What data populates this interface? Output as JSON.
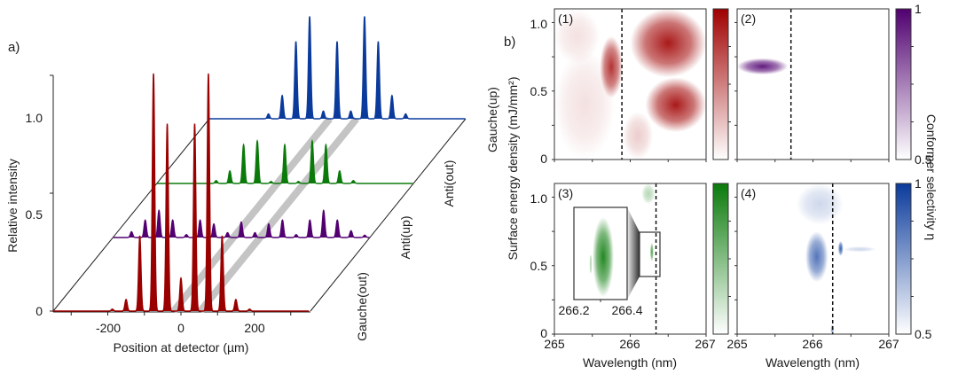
{
  "figure": {
    "panel_a_label": "a)",
    "panel_b_label": "b)"
  },
  "chart_data": [
    {
      "type": "line",
      "id": "a",
      "title": "",
      "xlabel": "Position at detector (µm)",
      "ylabel": "Relative intensity",
      "xlim": [
        -350,
        350
      ],
      "xticks": [
        -300,
        -200,
        -100,
        0,
        100,
        200,
        300
      ],
      "xtick_labels": [
        "-200",
        "0",
        "200"
      ],
      "xtick_label_values": [
        -200,
        0,
        200
      ],
      "ylim": [
        0,
        1.22
      ],
      "ytick_labels": [
        "0",
        "0.5",
        "1.0"
      ],
      "grid": false,
      "depth_axis_labels": [
        "Gauche(out)",
        "Anti(up)",
        "Anti(out)",
        "Gauche(up)"
      ],
      "guide_bands_um": [
        -20,
        53
      ],
      "peak_width_um": 3.2,
      "series": [
        {
          "name": "Gauche(out)",
          "color": "#9b0000",
          "peaks": [
            {
              "x": -187.5,
              "y": 0.01
            },
            {
              "x": -150,
              "y": 0.06
            },
            {
              "x": -112.5,
              "y": 0.39
            },
            {
              "x": -75,
              "y": 1.23
            },
            {
              "x": -37.5,
              "y": 0.97
            },
            {
              "x": 0,
              "y": 0.17
            },
            {
              "x": 37.5,
              "y": 0.97
            },
            {
              "x": 75,
              "y": 1.23
            },
            {
              "x": 112.5,
              "y": 0.39
            },
            {
              "x": 150,
              "y": 0.06
            },
            {
              "x": 187.5,
              "y": 0.01
            }
          ]
        },
        {
          "name": "Anti(up)",
          "color": "#520070",
          "peaks": [
            {
              "x": -300,
              "y": 0.03
            },
            {
              "x": -262.5,
              "y": 0.09
            },
            {
              "x": -225,
              "y": 0.14
            },
            {
              "x": -187.5,
              "y": 0.09
            },
            {
              "x": -150,
              "y": 0.015
            },
            {
              "x": -112.5,
              "y": 0.09
            },
            {
              "x": -75,
              "y": 0.07
            },
            {
              "x": -37.5,
              "y": 0.025
            },
            {
              "x": 0,
              "y": 0.08
            },
            {
              "x": 37.5,
              "y": 0.025
            },
            {
              "x": 75,
              "y": 0.07
            },
            {
              "x": 112.5,
              "y": 0.09
            },
            {
              "x": 150,
              "y": 0.015
            },
            {
              "x": 187.5,
              "y": 0.09
            },
            {
              "x": 225,
              "y": 0.14
            },
            {
              "x": 262.5,
              "y": 0.09
            },
            {
              "x": 300,
              "y": 0.035
            },
            {
              "x": 337.5,
              "y": 0.012
            }
          ]
        },
        {
          "name": "Anti(out)",
          "color": "#0b7a0b",
          "peaks": [
            {
              "x": -187.5,
              "y": 0.015
            },
            {
              "x": -150,
              "y": 0.065
            },
            {
              "x": -112.5,
              "y": 0.2
            },
            {
              "x": -75,
              "y": 0.22
            },
            {
              "x": -37.5,
              "y": 0.01
            },
            {
              "x": 0,
              "y": 0.2
            },
            {
              "x": 37.5,
              "y": 0.01
            },
            {
              "x": 75,
              "y": 0.22
            },
            {
              "x": 112.5,
              "y": 0.2
            },
            {
              "x": 150,
              "y": 0.065
            },
            {
              "x": 187.5,
              "y": 0.015
            }
          ]
        },
        {
          "name": "Gauche(up)",
          "color": "#0a3a9c",
          "peaks": [
            {
              "x": -187.5,
              "y": 0.025
            },
            {
              "x": -150,
              "y": 0.12
            },
            {
              "x": -112.5,
              "y": 0.4
            },
            {
              "x": -75,
              "y": 0.53
            },
            {
              "x": -37.5,
              "y": 0.04
            },
            {
              "x": 0,
              "y": 0.4
            },
            {
              "x": 37.5,
              "y": 0.04
            },
            {
              "x": 75,
              "y": 0.53
            },
            {
              "x": 112.5,
              "y": 0.4
            },
            {
              "x": 150,
              "y": 0.12
            },
            {
              "x": 187.5,
              "y": 0.025
            }
          ]
        }
      ]
    },
    {
      "type": "heatmap",
      "id": "b",
      "xlabel": "Wavelength (nm)",
      "ylabel": "Surface energy density (mJ/mm²)",
      "colorbar_label": "Conformer selectivity η",
      "xlim": [
        265,
        267
      ],
      "xtick_labels": [
        "265",
        "266",
        "267"
      ],
      "ylim": [
        0,
        1.1
      ],
      "ytick_labels": [
        "0",
        "0.5",
        "1.0"
      ],
      "colorbar_range": [
        0.5,
        1
      ],
      "colorbar_tick_labels": [
        "0.5",
        "1"
      ],
      "row_labels": [
        "Gauche(up)"
      ],
      "panels": [
        {
          "label": "(1)",
          "color": "#a00000",
          "dashed_line_nm": 265.89,
          "regions": [
            {
              "desc": "low-selectivity band upper-left",
              "nm": [
                265.0,
                265.6
              ],
              "mJ": [
                0.7,
                1.1
              ],
              "eta": 0.55
            },
            {
              "desc": "low-selectivity diagonal band lower-left",
              "nm": [
                265.0,
                265.8
              ],
              "mJ": [
                0.0,
                0.8
              ],
              "eta": 0.55
            },
            {
              "desc": "high-selectivity lobe near line",
              "nm": [
                265.6,
                265.9
              ],
              "mJ": [
                0.45,
                0.9
              ],
              "eta": 0.9
            },
            {
              "desc": "upper arm",
              "nm": [
                266.0,
                267.0
              ],
              "mJ": [
                0.6,
                1.1
              ],
              "eta": 0.95
            },
            {
              "desc": "lower arm",
              "nm": [
                266.2,
                267.0
              ],
              "mJ": [
                0.2,
                0.6
              ],
              "eta": 0.95
            },
            {
              "desc": "low band right of line",
              "nm": [
                265.9,
                266.3
              ],
              "mJ": [
                0.0,
                0.35
              ],
              "eta": 0.6
            }
          ]
        },
        {
          "label": "(2)",
          "color": "#500070",
          "dashed_line_nm": 265.71,
          "regions": [
            {
              "desc": "horizontal plume",
              "nm": [
                265.0,
                265.67
              ],
              "mJ": [
                0.62,
                0.74
              ],
              "eta": 0.95
            },
            {
              "desc": "small spot at base",
              "nm": [
                265.7,
                265.72
              ],
              "mJ": [
                0.0,
                0.03
              ],
              "eta": 0.6
            }
          ]
        },
        {
          "label": "(3)",
          "color": "#0a7a0a",
          "dashed_line_nm": 266.34,
          "inset": {
            "xlim": [
              266.2,
              266.4
            ],
            "xtick_labels": [
              "266.2",
              "266.4"
            ],
            "source_box_nm": [
              266.2,
              266.4
            ],
            "source_box_mJ": [
              0.42,
              0.75
            ]
          },
          "regions": [
            {
              "desc": "small spot",
              "nm": [
                266.27,
                266.3
              ],
              "mJ": [
                0.53,
                0.67
              ],
              "eta": 0.85
            },
            {
              "desc": "traces at top",
              "nm": [
                266.15,
                266.33
              ],
              "mJ": [
                0.95,
                1.1
              ],
              "eta": 0.65
            }
          ]
        },
        {
          "label": "(4)",
          "color": "#0a3a9c",
          "dashed_line_nm": 266.26,
          "regions": [
            {
              "desc": "central lobe",
              "nm": [
                265.9,
                266.2
              ],
              "mJ": [
                0.38,
                0.75
              ],
              "eta": 0.85
            },
            {
              "desc": "right spot",
              "nm": [
                266.33,
                266.4
              ],
              "mJ": [
                0.57,
                0.68
              ],
              "eta": 0.9
            },
            {
              "desc": "right tail",
              "nm": [
                266.4,
                266.83
              ],
              "mJ": [
                0.6,
                0.64
              ],
              "eta": 0.6
            },
            {
              "desc": "top streaks",
              "nm": [
                265.78,
                266.4
              ],
              "mJ": [
                0.8,
                1.1
              ],
              "eta": 0.6
            },
            {
              "desc": "base spot",
              "nm": [
                266.24,
                266.27
              ],
              "mJ": [
                0.0,
                0.07
              ],
              "eta": 0.8
            }
          ]
        }
      ]
    }
  ]
}
